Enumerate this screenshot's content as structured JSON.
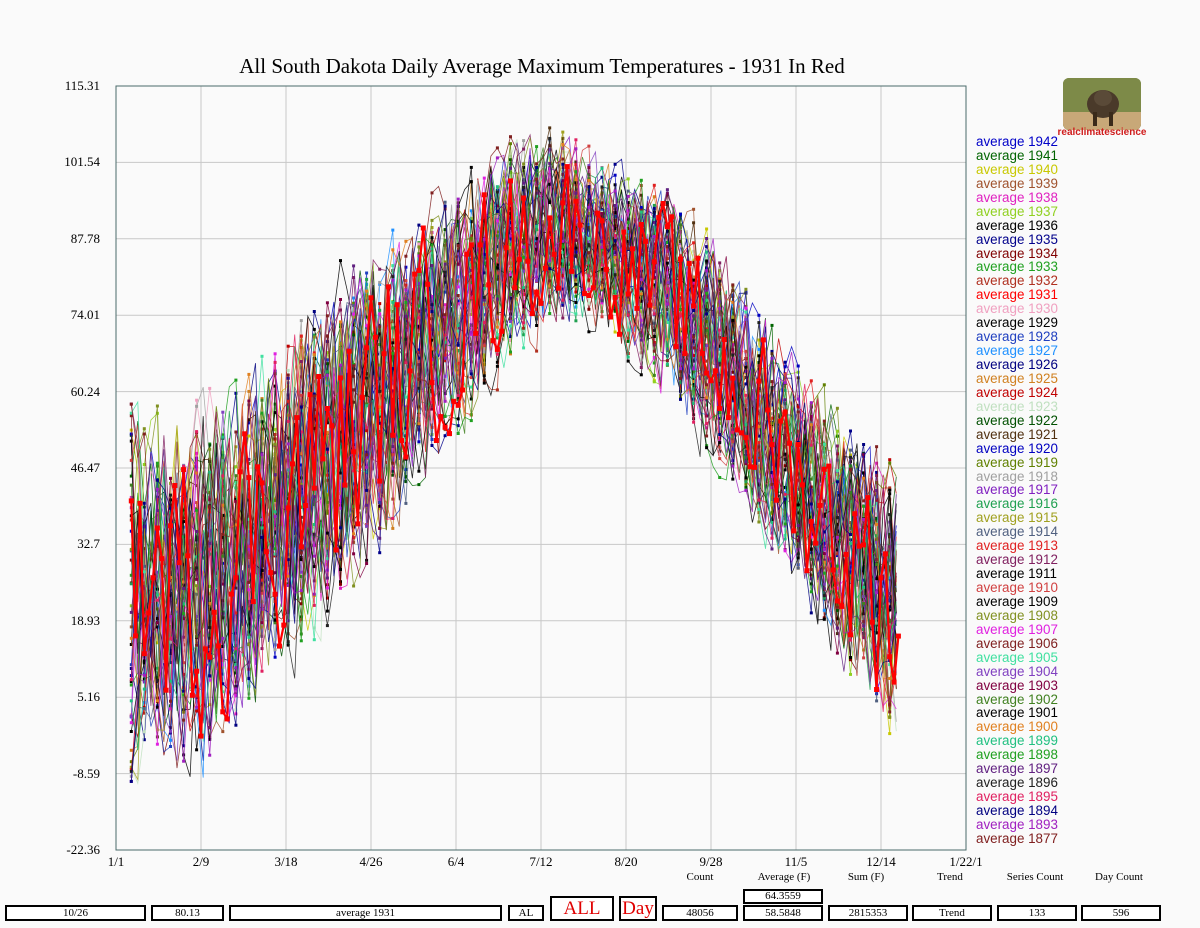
{
  "chart_data": {
    "type": "line",
    "title": "All South Dakota Daily Average Maximum Temperatures - 1931 In Red",
    "x_tick_labels": [
      "1/1",
      "2/9",
      "3/18",
      "4/26",
      "6/4",
      "7/12",
      "8/20",
      "9/28",
      "11/5",
      "12/14",
      "1/22/1"
    ],
    "y_tick_labels": [
      "115.31",
      "101.54",
      "87.78",
      "74.01",
      "60.24",
      "46.47",
      "32.7",
      "18.93",
      "5.16",
      "-8.59",
      "-22.36"
    ],
    "ylim": [
      -22.36,
      115.31
    ],
    "x_range_days": [
      0,
      390
    ],
    "grid": true,
    "highlight_series": "average 1931",
    "highlight_color": "#ff0000",
    "seasonal_envelope": {
      "day": [
        7,
        40,
        60,
        100,
        140,
        180,
        205,
        225,
        250,
        275,
        300,
        330,
        360
      ],
      "min": [
        -10,
        -14,
        -2,
        12,
        40,
        62,
        68,
        68,
        56,
        44,
        28,
        8,
        -10
      ],
      "max": [
        58,
        66,
        70,
        85,
        100,
        108,
        110,
        105,
        100,
        92,
        76,
        60,
        50
      ],
      "mid": [
        24,
        26,
        34,
        50,
        68,
        86,
        90,
        86,
        78,
        66,
        52,
        34,
        20
      ]
    },
    "series": [
      {
        "name": "average 1942",
        "color": "#0000c8"
      },
      {
        "name": "average 1941",
        "color": "#006400"
      },
      {
        "name": "average 1940",
        "color": "#c8c800"
      },
      {
        "name": "average 1939",
        "color": "#a0522d"
      },
      {
        "name": "average 1938",
        "color": "#e020c0"
      },
      {
        "name": "average 1937",
        "color": "#90d020"
      },
      {
        "name": "average 1936",
        "color": "#000000"
      },
      {
        "name": "average 1935",
        "color": "#00008b"
      },
      {
        "name": "average 1934",
        "color": "#800000"
      },
      {
        "name": "average 1933",
        "color": "#20a020"
      },
      {
        "name": "average 1932",
        "color": "#b03020"
      },
      {
        "name": "average 1931",
        "color": "#ff0000"
      },
      {
        "name": "average 1930",
        "color": "#f0a0c0"
      },
      {
        "name": "average 1929",
        "color": "#000000"
      },
      {
        "name": "average 1928",
        "color": "#2040c0"
      },
      {
        "name": "average 1927",
        "color": "#1e90ff"
      },
      {
        "name": "average 1926",
        "color": "#000080"
      },
      {
        "name": "average 1925",
        "color": "#d08020"
      },
      {
        "name": "average 1924",
        "color": "#c00000"
      },
      {
        "name": "average 1923",
        "color": "#c0e0c0"
      },
      {
        "name": "average 1922",
        "color": "#005000"
      },
      {
        "name": "average 1921",
        "color": "#503010"
      },
      {
        "name": "average 1920",
        "color": "#0000c0"
      },
      {
        "name": "average 1919",
        "color": "#608000"
      },
      {
        "name": "average 1918",
        "color": "#a0a0a0"
      },
      {
        "name": "average 1917",
        "color": "#8020c0"
      },
      {
        "name": "average 1916",
        "color": "#20a050"
      },
      {
        "name": "average 1915",
        "color": "#a0a020"
      },
      {
        "name": "average 1914",
        "color": "#506080"
      },
      {
        "name": "average 1913",
        "color": "#e02020"
      },
      {
        "name": "average 1912",
        "color": "#802060"
      },
      {
        "name": "average 1911",
        "color": "#000000"
      },
      {
        "name": "average 1910",
        "color": "#d04040"
      },
      {
        "name": "average 1909",
        "color": "#000000"
      },
      {
        "name": "average 1908",
        "color": "#809020"
      },
      {
        "name": "average 1907",
        "color": "#e020e0"
      },
      {
        "name": "average 1906",
        "color": "#802020"
      },
      {
        "name": "average 1905",
        "color": "#40e0a0"
      },
      {
        "name": "average 1904",
        "color": "#8040c0"
      },
      {
        "name": "average 1903",
        "color": "#800040"
      },
      {
        "name": "average 1902",
        "color": "#408020"
      },
      {
        "name": "average 1901",
        "color": "#000000"
      },
      {
        "name": "average 1900",
        "color": "#e08020"
      },
      {
        "name": "average 1899",
        "color": "#20c080"
      },
      {
        "name": "average 1898",
        "color": "#20a020"
      },
      {
        "name": "average 1897",
        "color": "#602080"
      },
      {
        "name": "average 1896",
        "color": "#202020"
      },
      {
        "name": "average 1895",
        "color": "#e02060"
      },
      {
        "name": "average 1894",
        "color": "#000080"
      },
      {
        "name": "average 1893",
        "color": "#a020c0"
      },
      {
        "name": "average 1877",
        "color": "#802020"
      }
    ]
  },
  "logo": {
    "caption": "realclimatescience"
  },
  "stats": {
    "labels": {
      "count": "Count",
      "average": "Average (F)",
      "sum": "Sum (F)",
      "trend": "Trend",
      "series_count": "Series Count",
      "day_count": "Day Count"
    },
    "date": "10/26",
    "value": "80.13",
    "series_name": "average 1931",
    "state": "AL",
    "all_label": "ALL",
    "day_label": "Day",
    "count": "48056",
    "average_top": "64.3559",
    "average": "58.5848",
    "sum": "2815353",
    "trend": "Trend",
    "series_count": "133",
    "day_count": "596"
  }
}
